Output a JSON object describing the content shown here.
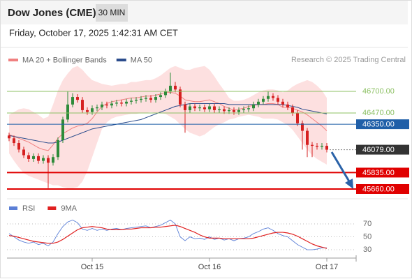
{
  "chart_data": [
    {
      "type": "candlestick",
      "title": "Dow Jones (CME)",
      "timeframe": "30 MIN",
      "subtitle": "Friday, October 17, 2025 1:42:31 AM CET",
      "source": "Research © 2025 Trading Central",
      "up_color": "#2e8b3a",
      "down_color": "#d62020",
      "ylim": [
        45550,
        46980
      ],
      "open": [
        46230,
        46200,
        46150,
        46080,
        46020,
        45980,
        46010,
        45960,
        45990,
        45940,
        46000,
        46180,
        46400,
        46560,
        46640,
        46610,
        46500,
        46480,
        46520,
        46530,
        46560,
        46550,
        46570,
        46580,
        46570,
        46590,
        46600,
        46610,
        46620,
        46630,
        46610,
        46640,
        46660,
        46700,
        46760,
        46720,
        46560,
        46500,
        46540,
        46520,
        46530,
        46510,
        46540,
        46500,
        46510,
        46490,
        46500,
        46480,
        46500,
        46510,
        46520,
        46560,
        46590,
        46620,
        46650,
        46630,
        46590,
        46560,
        46530,
        46470,
        46360,
        46280,
        46130,
        46120,
        46110,
        46120
      ],
      "high": [
        46260,
        46230,
        46180,
        46110,
        46050,
        46040,
        46040,
        46020,
        46020,
        46030,
        46210,
        46430,
        46700,
        46680,
        46670,
        46640,
        46530,
        46550,
        46560,
        46590,
        46590,
        46600,
        46610,
        46610,
        46620,
        46630,
        46640,
        46650,
        46660,
        46660,
        46670,
        46690,
        46730,
        46900,
        46800,
        46750,
        46590,
        46570,
        46570,
        46560,
        46560,
        46570,
        46570,
        46540,
        46540,
        46530,
        46530,
        46530,
        46540,
        46550,
        46590,
        46620,
        46650,
        46700,
        46680,
        46660,
        46620,
        46590,
        46560,
        46500,
        46390,
        46310,
        46160,
        46150,
        46150,
        46150
      ],
      "low": [
        46170,
        46120,
        46050,
        45990,
        45950,
        45950,
        45930,
        45930,
        45670,
        45910,
        45970,
        46150,
        46370,
        46530,
        46580,
        46470,
        46450,
        46450,
        46490,
        46500,
        46520,
        46520,
        46540,
        46540,
        46540,
        46560,
        46570,
        46580,
        46590,
        46580,
        46580,
        46610,
        46630,
        46670,
        46690,
        46530,
        46260,
        46470,
        46490,
        46490,
        46480,
        46480,
        46470,
        46470,
        46460,
        46460,
        46450,
        46450,
        46470,
        46480,
        46490,
        46530,
        46560,
        46590,
        46600,
        46560,
        46530,
        46500,
        46440,
        46330,
        46080,
        46000,
        46000,
        46080,
        46080,
        46050
      ],
      "close": [
        46200,
        46150,
        46080,
        46020,
        45980,
        46010,
        45960,
        45990,
        45940,
        46000,
        46180,
        46400,
        46560,
        46640,
        46610,
        46500,
        46480,
        46520,
        46530,
        46560,
        46550,
        46570,
        46580,
        46570,
        46590,
        46600,
        46610,
        46620,
        46630,
        46610,
        46640,
        46660,
        46700,
        46760,
        46720,
        46560,
        46500,
        46540,
        46520,
        46530,
        46510,
        46540,
        46500,
        46510,
        46490,
        46500,
        46480,
        46500,
        46510,
        46520,
        46560,
        46590,
        46620,
        46650,
        46630,
        46590,
        46560,
        46530,
        46470,
        46360,
        46280,
        46130,
        46120,
        46110,
        46120,
        46079
      ],
      "series": [
        {
          "name": "MA 20 + Bollinger Bands",
          "color": "#f08080",
          "band_color": "#fde0e0",
          "values": [
            46240,
            46220,
            46200,
            46180,
            46160,
            46130,
            46100,
            46080,
            46070,
            46130,
            46200,
            46250,
            46280,
            46310,
            46330,
            46340,
            46360,
            46410,
            46480,
            46540,
            46570,
            46590,
            46600,
            46610,
            46620,
            46630,
            46630,
            46640,
            46650,
            46650,
            46660,
            46670,
            46690,
            46690,
            46680,
            46650,
            46610,
            46600,
            46590,
            46590,
            46600,
            46610,
            46590,
            46570,
            46540,
            46520,
            46500,
            46510,
            46520,
            46540,
            46550,
            46560,
            46560,
            46570,
            46570,
            46560,
            46530,
            46530,
            46520,
            46500,
            46480,
            46450,
            46410,
            46370,
            46330,
            46280
          ],
          "upper": [
            46450,
            46480,
            46510,
            46520,
            46510,
            46480,
            46450,
            46410,
            46430,
            46560,
            46710,
            46820,
            46890,
            46950,
            46970,
            46930,
            46870,
            46820,
            46800,
            46780,
            46770,
            46760,
            46770,
            46780,
            46780,
            46800,
            46800,
            46810,
            46820,
            46820,
            46840,
            46870,
            46910,
            46950,
            46970,
            46950,
            46930,
            46930,
            46950,
            46960,
            46970,
            46930,
            46860,
            46780,
            46710,
            46630,
            46600,
            46600,
            46610,
            46630,
            46660,
            46690,
            46710,
            46720,
            46720,
            46710,
            46690,
            46710,
            46750,
            46780,
            46800,
            46820,
            46800,
            46760,
            46710,
            46630
          ],
          "lower": [
            46040,
            45960,
            45890,
            45830,
            45800,
            45780,
            45760,
            45740,
            45720,
            45700,
            45700,
            45680,
            45670,
            45670,
            45680,
            45740,
            45850,
            46000,
            46150,
            46300,
            46370,
            46410,
            46430,
            46440,
            46450,
            46460,
            46460,
            46470,
            46470,
            46480,
            46470,
            46470,
            46460,
            46430,
            46400,
            46350,
            46300,
            46260,
            46240,
            46220,
            46240,
            46280,
            46320,
            46350,
            46370,
            46400,
            46410,
            46430,
            46440,
            46450,
            46440,
            46430,
            46410,
            46410,
            46410,
            46400,
            46370,
            46340,
            46290,
            46220,
            46150,
            46080,
            46020,
            45980,
            45950,
            45920
          ]
        },
        {
          "name": "MA 50",
          "color": "#2b4c8c",
          "values": [
            46230,
            46220,
            46210,
            46200,
            46190,
            46180,
            46170,
            46160,
            46150,
            46150,
            46160,
            46180,
            46200,
            46220,
            46240,
            46260,
            46280,
            46300,
            46310,
            46320,
            46330,
            46340,
            46350,
            46360,
            46370,
            46380,
            46390,
            46400,
            46420,
            46440,
            46460,
            46480,
            46500,
            46520,
            46540,
            46550,
            46560,
            46570,
            46570,
            46570,
            46570,
            46570,
            46570,
            46570,
            46570,
            46560,
            46560,
            46560,
            46560,
            46560,
            46560,
            46560,
            46560,
            46560,
            46560,
            46560,
            46560,
            46550,
            46540,
            46530,
            46510,
            46500,
            46490,
            46480,
            46470,
            46460
          ]
        }
      ],
      "levels": [
        {
          "value": 46700,
          "label": "46700.00",
          "color": "#8cc063",
          "line": "solid",
          "box": false
        },
        {
          "value": 46470,
          "label": "46470.00",
          "color": "#8cc063",
          "line": "solid",
          "box": false
        },
        {
          "value": 46350,
          "label": "46350.00",
          "color": "#1f5fa8",
          "line": "solid",
          "box": true
        },
        {
          "value": 46079,
          "label": "46079.00",
          "color": "#333333",
          "line": "dotted",
          "box": true
        },
        {
          "value": 45835,
          "label": "45835.00",
          "color": "#e00000",
          "line": "thick",
          "box": true
        },
        {
          "value": 45660,
          "label": "45660.00",
          "color": "#e00000",
          "line": "thick",
          "box": true
        }
      ]
    },
    {
      "type": "line",
      "categories": [
        null,
        null,
        null,
        null,
        null,
        null,
        null,
        null,
        null,
        null,
        null,
        null,
        null,
        null,
        null,
        null,
        null,
        "Oct 15",
        null,
        null,
        null,
        null,
        null,
        null,
        null,
        null,
        null,
        null,
        null,
        null,
        null,
        null,
        null,
        null,
        null,
        null,
        null,
        null,
        null,
        null,
        null,
        "Oct 16",
        null,
        null,
        null,
        null,
        null,
        null,
        null,
        null,
        null,
        null,
        null,
        null,
        null,
        null,
        null,
        null,
        null,
        null,
        null,
        null,
        null,
        null,
        null,
        "Oct 17"
      ],
      "ylim": [
        20,
        95
      ],
      "yticks": [
        70,
        50,
        30
      ],
      "grid": true,
      "series": [
        {
          "name": "RSI",
          "color": "#5b7fd6",
          "values": [
            55,
            50,
            45,
            42,
            40,
            42,
            38,
            40,
            36,
            42,
            55,
            66,
            73,
            76,
            72,
            62,
            60,
            63,
            60,
            62,
            60,
            62,
            63,
            61,
            63,
            64,
            65,
            66,
            67,
            64,
            66,
            68,
            72,
            76,
            70,
            50,
            44,
            50,
            47,
            48,
            46,
            50,
            46,
            48,
            45,
            47,
            44,
            47,
            48,
            50,
            55,
            58,
            62,
            64,
            60,
            55,
            52,
            50,
            44,
            38,
            34,
            30,
            30,
            31,
            33,
            33
          ]
        },
        {
          "name": "9MA",
          "color": "#e02020",
          "values": [
            52,
            51,
            49,
            47,
            45,
            43,
            42,
            41,
            40,
            40,
            42,
            46,
            51,
            56,
            61,
            64,
            65,
            66,
            65,
            64,
            62,
            61,
            61,
            61,
            62,
            62,
            63,
            64,
            64,
            64,
            65,
            65,
            66,
            67,
            68,
            66,
            63,
            60,
            57,
            53,
            50,
            48,
            48,
            48,
            47,
            47,
            47,
            47,
            47,
            47,
            48,
            50,
            52,
            54,
            56,
            57,
            57,
            56,
            54,
            51,
            47,
            43,
            39,
            36,
            34,
            32
          ]
        }
      ]
    }
  ]
}
